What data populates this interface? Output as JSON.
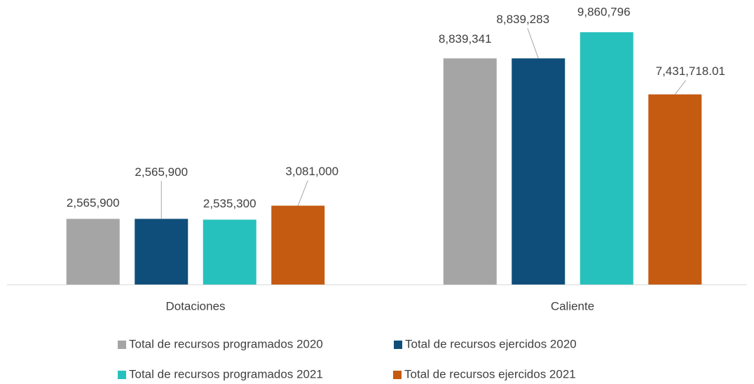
{
  "chart_data": {
    "type": "bar",
    "categories": [
      "Dotaciones",
      "Caliente"
    ],
    "series": [
      {
        "name": "Total de recursos programados 2020",
        "color": "#a5a5a5",
        "values": [
          2565900,
          8839341
        ],
        "value_labels": [
          "2,565,900",
          "8,839,341"
        ]
      },
      {
        "name": "Total de recursos ejercidos 2020",
        "color": "#0f4e7a",
        "values": [
          2565900,
          8839283
        ],
        "value_labels": [
          "2,565,900",
          "8,839,283"
        ]
      },
      {
        "name": "Total de recursos programados 2021",
        "color": "#27c1bd",
        "values": [
          2535300,
          9860796
        ],
        "value_labels": [
          "2,535,300",
          "9,860,796"
        ]
      },
      {
        "name": "Total de recursos ejercidos 2021",
        "color": "#c55a11",
        "values": [
          3081000,
          7431718.01
        ],
        "value_labels": [
          "3,081,000",
          "7,431,718.01"
        ]
      }
    ]
  }
}
